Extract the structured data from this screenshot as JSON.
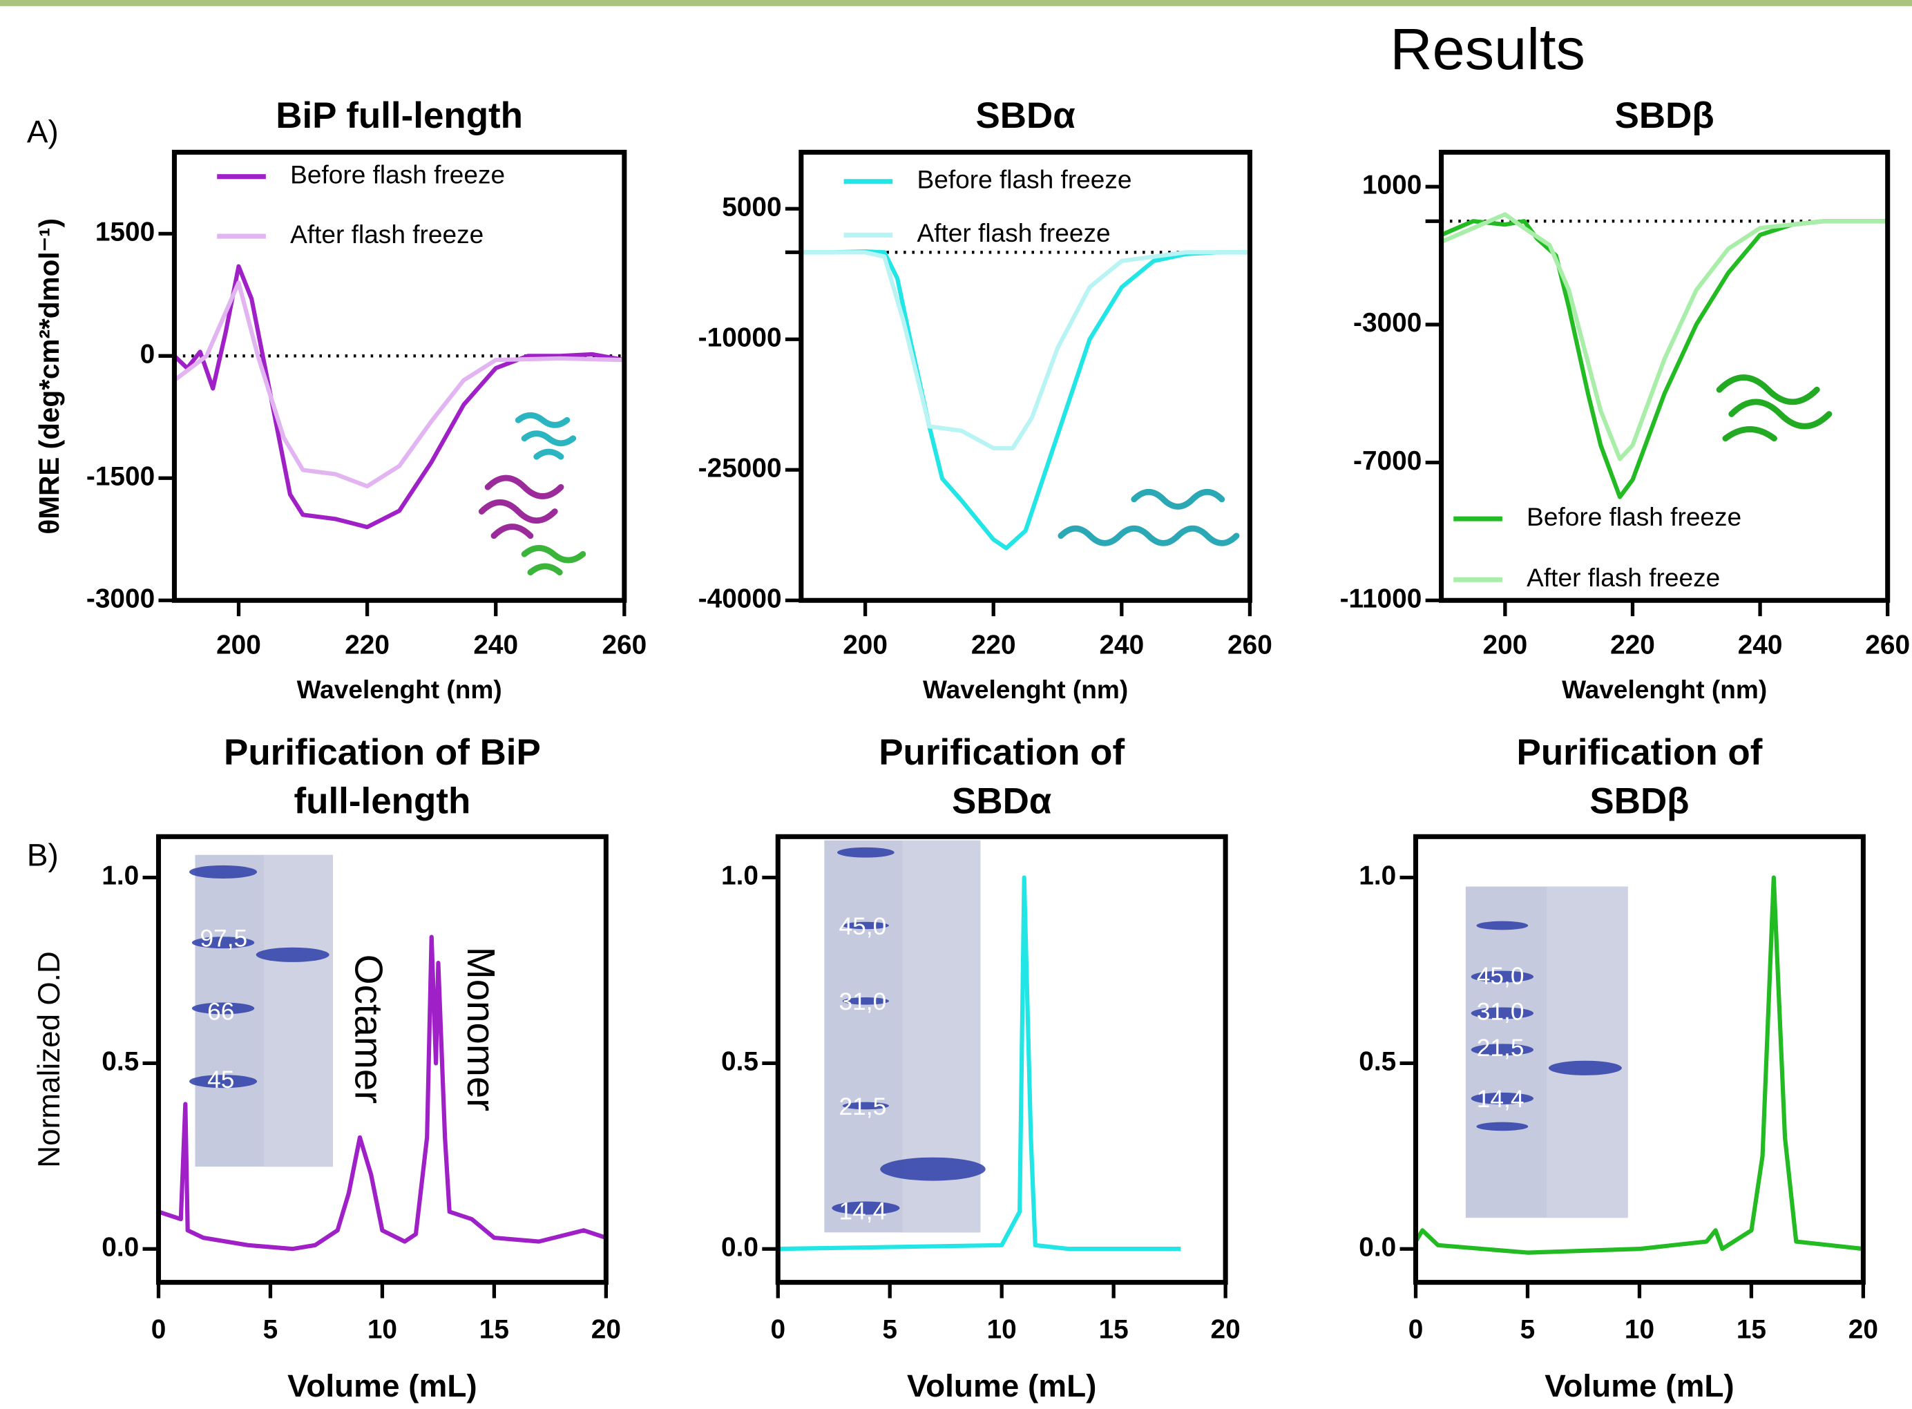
{
  "title": "Results",
  "panel_labels": [
    "A)",
    "B)"
  ],
  "chart_data": [
    {
      "type": "line",
      "title": [
        "BiP full-length"
      ],
      "xlabel": "Wavelenght (nm)",
      "ylabel": "θMRE (deg*cm²*dmol⁻¹)",
      "xlim": [
        190,
        260
      ],
      "ylim": [
        -3000,
        2500
      ],
      "xticks": [
        200,
        220,
        240,
        260
      ],
      "yticks": [
        1500,
        0,
        -1500,
        -3000
      ],
      "hline": 0,
      "legend": "upper left",
      "series": [
        {
          "name": "Before flash freeze",
          "color": "#a020c8",
          "x": [
            190,
            192,
            194,
            196,
            198,
            200,
            202,
            205,
            208,
            210,
            215,
            220,
            225,
            230,
            235,
            240,
            245,
            250,
            255,
            260
          ],
          "values": [
            0,
            -150,
            50,
            -400,
            300,
            1100,
            700,
            -500,
            -1700,
            -1950,
            -2000,
            -2100,
            -1900,
            -1300,
            -600,
            -150,
            0,
            0,
            20,
            -50
          ]
        },
        {
          "name": "After flash freeze",
          "color": "#e2b4f2",
          "x": [
            190,
            195,
            200,
            203,
            207,
            210,
            215,
            220,
            225,
            230,
            235,
            240,
            250,
            260
          ],
          "values": [
            -300,
            0,
            900,
            0,
            -1000,
            -1400,
            -1450,
            -1600,
            -1350,
            -800,
            -300,
            -50,
            -30,
            -50
          ]
        }
      ]
    },
    {
      "type": "line",
      "title": [
        "SBDα"
      ],
      "xlabel": "Wavelenght (nm)",
      "xlim": [
        190,
        260
      ],
      "ylim": [
        -40000,
        11500
      ],
      "xticks": [
        200,
        220,
        240,
        260
      ],
      "yticks": [
        5000,
        -10000,
        -25000,
        -40000
      ],
      "minor_yticks": [
        0
      ],
      "hline": 0,
      "legend": "upper left",
      "series": [
        {
          "name": "Before flash freeze",
          "color": "#22e6e6",
          "x": [
            190,
            195,
            200,
            203,
            205,
            207,
            210,
            212,
            215,
            220,
            222,
            225,
            230,
            235,
            240,
            245,
            250,
            255,
            260
          ],
          "values": [
            0,
            0,
            100,
            0,
            -3000,
            -10000,
            -20000,
            -26000,
            -28500,
            -33000,
            -34000,
            -32000,
            -21000,
            -10000,
            -4000,
            -1000,
            -200,
            0,
            0
          ]
        },
        {
          "name": "After flash freeze",
          "color": "#b8f4f4",
          "x": [
            190,
            200,
            203,
            206,
            210,
            215,
            220,
            223,
            226,
            230,
            235,
            240,
            250,
            260
          ],
          "values": [
            0,
            0,
            -500,
            -8000,
            -20000,
            -20500,
            -22500,
            -22500,
            -19000,
            -11000,
            -4000,
            -1000,
            0,
            0
          ]
        }
      ]
    },
    {
      "type": "line",
      "title": [
        "SBDβ"
      ],
      "xlabel": "Wavelenght (nm)",
      "xlim": [
        190,
        260
      ],
      "ylim": [
        -11000,
        2000
      ],
      "xticks": [
        200,
        220,
        240,
        260
      ],
      "yticks": [
        1000,
        -3000,
        -7000,
        -11000
      ],
      "minor_yticks": [
        0
      ],
      "hline": 0,
      "legend": "lower left",
      "series": [
        {
          "name": "Before flash freeze",
          "color": "#22bb22",
          "x": [
            190,
            195,
            200,
            203,
            205,
            208,
            210,
            213,
            215,
            218,
            220,
            225,
            230,
            235,
            240,
            245,
            250,
            255,
            260
          ],
          "values": [
            -400,
            0,
            -100,
            0,
            -500,
            -1000,
            -2500,
            -5000,
            -6500,
            -8000,
            -7500,
            -5000,
            -3000,
            -1500,
            -400,
            -100,
            0,
            0,
            0
          ]
        },
        {
          "name": "After flash freeze",
          "color": "#a8eea8",
          "x": [
            190,
            195,
            200,
            203,
            207,
            210,
            215,
            218,
            220,
            225,
            230,
            235,
            240,
            250,
            260
          ],
          "values": [
            -600,
            -200,
            200,
            -200,
            -700,
            -2000,
            -5500,
            -6900,
            -6500,
            -4000,
            -2000,
            -800,
            -200,
            0,
            0
          ]
        }
      ]
    },
    {
      "type": "line",
      "title": [
        "Purification of BiP",
        "full-length"
      ],
      "xlabel": "Volume (mL)",
      "ylabel": "Normalized O.D",
      "xlim": [
        0,
        20
      ],
      "ylim": [
        -0.09,
        1.11
      ],
      "xticks": [
        0,
        5,
        10,
        15,
        20
      ],
      "yticks": [
        {
          "value": 1,
          "label": "1.0"
        },
        0.5,
        {
          "value": 0,
          "label": "0.0"
        }
      ],
      "annotations": [
        "Octamer",
        "Monomer"
      ],
      "gel_labels": [
        "97,5",
        "66",
        "45"
      ],
      "series": [
        {
          "color": "#a020c8",
          "x": [
            0,
            1,
            1.2,
            1.3,
            2,
            4,
            6,
            7,
            8,
            8.5,
            9,
            9.5,
            10,
            11,
            11.5,
            12,
            12.2,
            12.4,
            12.5,
            12.8,
            13,
            14,
            15,
            17,
            19,
            20
          ],
          "values": [
            0.1,
            0.08,
            0.39,
            0.05,
            0.03,
            0.01,
            0,
            0.01,
            0.05,
            0.15,
            0.3,
            0.2,
            0.05,
            0.02,
            0.04,
            0.3,
            0.84,
            0.5,
            0.77,
            0.3,
            0.1,
            0.08,
            0.03,
            0.02,
            0.05,
            0.03
          ]
        }
      ]
    },
    {
      "type": "line",
      "title": [
        "Purification of",
        "SBDα"
      ],
      "xlabel": "Volume (mL)",
      "xlim": [
        0,
        20
      ],
      "ylim": [
        -0.09,
        1.11
      ],
      "xticks": [
        0,
        5,
        10,
        15,
        20
      ],
      "yticks": [
        {
          "value": 1,
          "label": "1.0"
        },
        0.5,
        {
          "value": 0,
          "label": "0.0"
        }
      ],
      "gel_labels": [
        "45,0",
        "31,0",
        "21,5",
        "14,4"
      ],
      "series": [
        {
          "color": "#22e6e6",
          "x": [
            0,
            10,
            10.8,
            11,
            11.3,
            11.5,
            13,
            18
          ],
          "values": [
            0,
            0.01,
            0.1,
            1,
            0.3,
            0.01,
            0,
            0
          ]
        }
      ]
    },
    {
      "type": "line",
      "title": [
        "Purification of",
        "SBDβ"
      ],
      "xlabel": "Volume (mL)",
      "xlim": [
        0,
        20
      ],
      "ylim": [
        -0.09,
        1.11
      ],
      "xticks": [
        0,
        5,
        10,
        15,
        20
      ],
      "yticks": [
        {
          "value": 1,
          "label": "1.0"
        },
        0.5,
        {
          "value": 0,
          "label": "0.0"
        }
      ],
      "gel_labels": [
        "45,0",
        "31,0",
        "21,5",
        "14,4"
      ],
      "series": [
        {
          "color": "#22bb22",
          "x": [
            0,
            0.3,
            1,
            5,
            10,
            13,
            13.4,
            13.7,
            15,
            15.5,
            16,
            16.5,
            17,
            20
          ],
          "values": [
            0.02,
            0.05,
            0.01,
            -0.01,
            0,
            0.02,
            0.05,
            0,
            0.05,
            0.25,
            1,
            0.3,
            0.02,
            0
          ]
        }
      ]
    }
  ]
}
